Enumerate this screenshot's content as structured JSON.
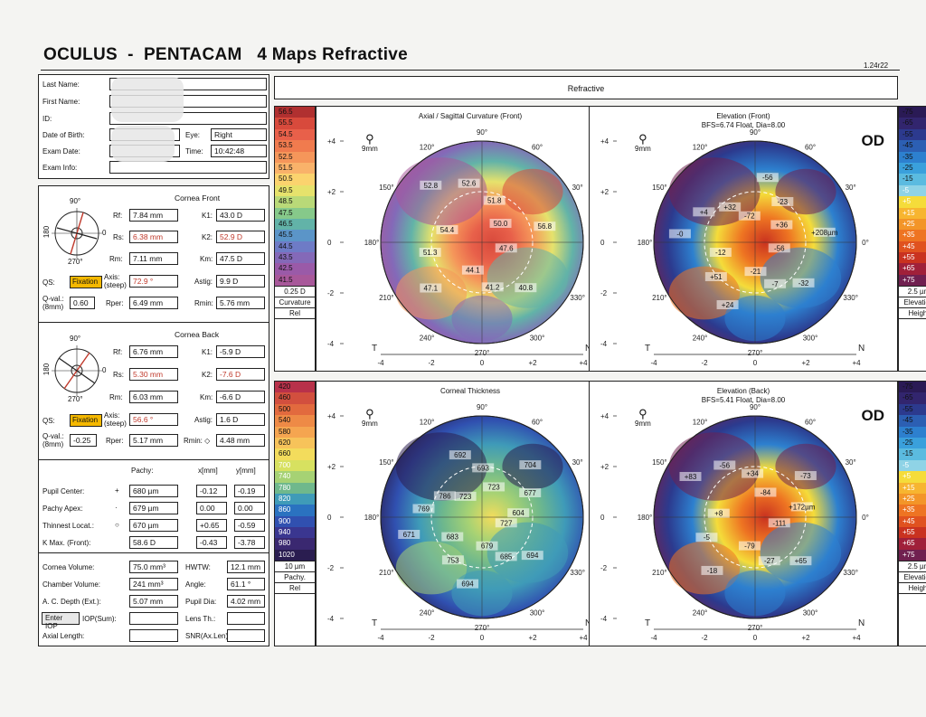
{
  "header": {
    "title": "OCULUS  -  PENTACAM   4 Maps Refractive",
    "version": "1.24r22",
    "display_title": "Refractive"
  },
  "patient": {
    "last_name_label": "Last Name:",
    "first_name_label": "First Name:",
    "id_label": "ID:",
    "dob_label": "Date of Birth:",
    "eye_label": "Eye:",
    "eye_value": "Right",
    "exam_date_label": "Exam Date:",
    "time_label": "Time:",
    "time_value": "10:42:48",
    "exam_info_label": "Exam Info:"
  },
  "cornea_front": {
    "title": "Cornea Front",
    "rf_label": "Rf:",
    "rf": "7.84 mm",
    "k1_label": "K1:",
    "k1": "43.0 D",
    "rs_label": "Rs:",
    "rs": "6.38 mm",
    "k2_label": "K2:",
    "k2": "52.9 D",
    "rm_label": "Rm:",
    "rm": "7.11 mm",
    "km_label": "Km:",
    "km": "47.5 D",
    "qs_label": "QS:",
    "fixation": "Fixation",
    "axis_label": "Axis:",
    "axis_sub": "(steep)",
    "axis": "72.9 °",
    "astig_label": "Astig:",
    "astig": "9.9 D",
    "qval_label": "Q-val.:",
    "qval_sub": "(8mm)",
    "qval": "0.60",
    "rper_label": "Rper:",
    "rper": "6.49 mm",
    "rmin_label": "Rmin:",
    "rmin": "5.76 mm",
    "deg_top": "90°",
    "deg_left": "180",
    "deg_right": "0",
    "deg_bottom": "270°"
  },
  "cornea_back": {
    "title": "Cornea Back",
    "rf_label": "Rf:",
    "rf": "6.76 mm",
    "k1_label": "K1:",
    "k1": "-5.9 D",
    "rs_label": "Rs:",
    "rs": "5.30 mm",
    "k2_label": "K2:",
    "k2": "-7.6 D",
    "rm_label": "Rm:",
    "rm": "6.03 mm",
    "km_label": "Km:",
    "km": "-6.6 D",
    "qs_label": "QS:",
    "fixation": "Fixation",
    "axis_label": "Axis:",
    "axis_sub": "(steep)",
    "axis": "56.6 °",
    "astig_label": "Astig:",
    "astig": "1.6 D",
    "qval_label": "Q-val.:",
    "qval_sub": "(8mm)",
    "qval": "-0.25",
    "rper_label": "Rper:",
    "rper": "5.17 mm",
    "rmin_label": "Rmin: ◇",
    "rmin": "4.48 mm",
    "deg_top": "90°",
    "deg_left": "180",
    "deg_right": "0",
    "deg_bottom": "270°"
  },
  "pachy": {
    "col_pachy": "Pachy:",
    "col_x": "x[mm]",
    "col_y": "y[mm]",
    "rows": [
      {
        "label": "Pupil Center:",
        "sym": "+",
        "pachy": "680 µm",
        "x": "-0.12",
        "y": "-0.19"
      },
      {
        "label": "Pachy Apex:",
        "sym": "·",
        "pachy": "679 µm",
        "x": "0.00",
        "y": "0.00"
      },
      {
        "label": "Thinnest Locat.:",
        "sym": "○",
        "pachy": "670 µm",
        "x": "+0.65",
        "y": "-0.59"
      },
      {
        "label": "K Max. (Front):",
        "sym": "",
        "pachy": "58.6 D",
        "x": "-0.43",
        "y": "-3.78"
      }
    ]
  },
  "volumes": {
    "cornea_volume_label": "Cornea Volume:",
    "cornea_volume": "75.0 mm³",
    "hwtw_label": "HWTW:",
    "hwtw": "12.1 mm",
    "chamber_volume_label": "Chamber Volume:",
    "chamber_volume": "241 mm³",
    "angle_label": "Angle:",
    "angle": "61.1 °",
    "ac_depth_label": "A. C. Depth (Ext.):",
    "ac_depth": "5.07 mm",
    "pupil_dia_label": "Pupil Dia:",
    "pupil_dia": "4.02 mm",
    "enter_iop": "Enter IOP",
    "iop_sum_label": "IOP(Sum):",
    "lens_th_label": "Lens Th.:",
    "axial_length_label": "Axial Length:",
    "snr_label": "SNR(Ax.Len)"
  },
  "scales": {
    "curvature": {
      "values": [
        "56.5",
        "55.5",
        "54.5",
        "53.5",
        "52.5",
        "51.5",
        "50.5",
        "49.5",
        "48.5",
        "47.5",
        "46.5",
        "45.5",
        "44.5",
        "43.5",
        "42.5",
        "41.5"
      ],
      "colors": [
        "#b03030",
        "#d84a3c",
        "#e8604a",
        "#f07b4e",
        "#f5965a",
        "#f9b26a",
        "#fbd36e",
        "#e6e26c",
        "#b9d978",
        "#86c98a",
        "#62b3a8",
        "#5b95c8",
        "#6e7bc6",
        "#8469b8",
        "#9a5aa8",
        "#a8589a"
      ],
      "step": "0.25 D",
      "name": "Curvature",
      "mode": "Rel"
    },
    "thickness": {
      "values": [
        "420",
        "460",
        "500",
        "540",
        "580",
        "620",
        "660",
        "700",
        "740",
        "780",
        "820",
        "860",
        "900",
        "940",
        "980",
        "1020"
      ],
      "colors": [
        "#b8314a",
        "#d24f3e",
        "#e26a3e",
        "#ee8a46",
        "#f5a550",
        "#f7c35a",
        "#f3dc5c",
        "#d7e160",
        "#a6d274",
        "#6fb88c",
        "#3f9bb8",
        "#2a72c0",
        "#3050b0",
        "#3a3690",
        "#3a2870",
        "#2a1d50"
      ],
      "step": "10 µm",
      "name": "Pachy.",
      "mode": "Rel"
    },
    "elevation": {
      "values": [
        "-75",
        "-65",
        "-55",
        "-45",
        "-35",
        "-25",
        "-15",
        "-5",
        "+5",
        "+15",
        "+25",
        "+35",
        "+45",
        "+55",
        "+65",
        "+75"
      ],
      "colors": [
        "#2a1a55",
        "#32256e",
        "#2c3a8e",
        "#2c5fb3",
        "#2d80cf",
        "#3aa0dc",
        "#5bbbe0",
        "#8fd3e6",
        "#f5dc3a",
        "#f7b530",
        "#f39528",
        "#ee7422",
        "#e0521f",
        "#c93220",
        "#a0203a",
        "#702050"
      ],
      "step": "2.5 µm",
      "name": "Elevation",
      "mode": "Height"
    }
  },
  "maps": {
    "axial": {
      "title": "Axial / Sagittal Curvature (Front)",
      "od": "OD",
      "zoom": "9mm",
      "labels": [
        "47.6",
        "40.8",
        "41.2",
        "44.1",
        "47.1",
        "51.3",
        "54.4",
        "52.8",
        "52.6",
        "51.8",
        "50.0",
        "56.8"
      ],
      "angle_labels": [
        "90°",
        "60°",
        "30°",
        "0°",
        "330°",
        "300°",
        "270°",
        "240°",
        "210°",
        "180°",
        "150°",
        "120°"
      ],
      "y_ticks": [
        "+4",
        "+2",
        "0",
        "-2",
        "-4"
      ],
      "x_ticks": [
        "-4",
        "-2",
        "0",
        "+2",
        "+4"
      ],
      "t": "T",
      "n": "N"
    },
    "elev_front": {
      "title": "Elevation (Front)",
      "subtitle": "BFS=6.74 Float, Dia=8.00",
      "od": "OD",
      "zoom": "9mm",
      "labels": [
        "-56",
        "-32",
        "-7",
        "-21",
        "+24",
        "+51",
        "-12",
        "-0",
        "+4",
        "+32",
        "-72",
        "-56",
        "-23",
        "+36",
        "+208µm"
      ],
      "angle_labels": [
        "90°",
        "60°",
        "30°",
        "0°",
        "330°",
        "300°",
        "270°",
        "240°",
        "210°",
        "180°",
        "150°",
        "120°"
      ],
      "y_ticks": [
        "+4",
        "+2",
        "0",
        "-2",
        "-4"
      ],
      "x_ticks": [
        "-4",
        "-2",
        "0",
        "+2",
        "+4"
      ],
      "t": "T",
      "n": "N"
    },
    "thickness": {
      "title": "Corneal Thickness",
      "od": "OD",
      "zoom": "9mm",
      "labels": [
        "727",
        "694",
        "685",
        "679",
        "694",
        "753",
        "683",
        "671",
        "769",
        "786",
        "723",
        "692",
        "693",
        "723",
        "704",
        "677",
        "604"
      ],
      "angle_labels": [
        "90°",
        "60°",
        "30°",
        "0°",
        "330°",
        "300°",
        "270°",
        "240°",
        "210°",
        "180°",
        "150°",
        "120°"
      ],
      "y_ticks": [
        "+4",
        "+2",
        "0",
        "-2",
        "-4"
      ],
      "x_ticks": [
        "-4",
        "-2",
        "0",
        "+2",
        "+4"
      ],
      "t": "T",
      "n": "N"
    },
    "elev_back": {
      "title": "Elevation (Back)",
      "subtitle": "BFS=5.41 Float, Dia=8.00",
      "od": "OD",
      "zoom": "9mm",
      "labels": [
        "-111",
        "+65",
        "-27",
        "-79",
        "-18",
        "-5",
        "+8",
        "+83",
        "-56",
        "+34",
        "-84",
        "-73",
        "+172µm"
      ],
      "angle_labels": [
        "90°",
        "60°",
        "30°",
        "0°",
        "330°",
        "300°",
        "270°",
        "240°",
        "210°",
        "180°",
        "150°",
        "120°"
      ],
      "y_ticks": [
        "+4",
        "+2",
        "0",
        "-2",
        "-4"
      ],
      "x_ticks": [
        "-4",
        "-2",
        "0",
        "+2",
        "+4"
      ],
      "t": "T",
      "n": "N"
    }
  }
}
